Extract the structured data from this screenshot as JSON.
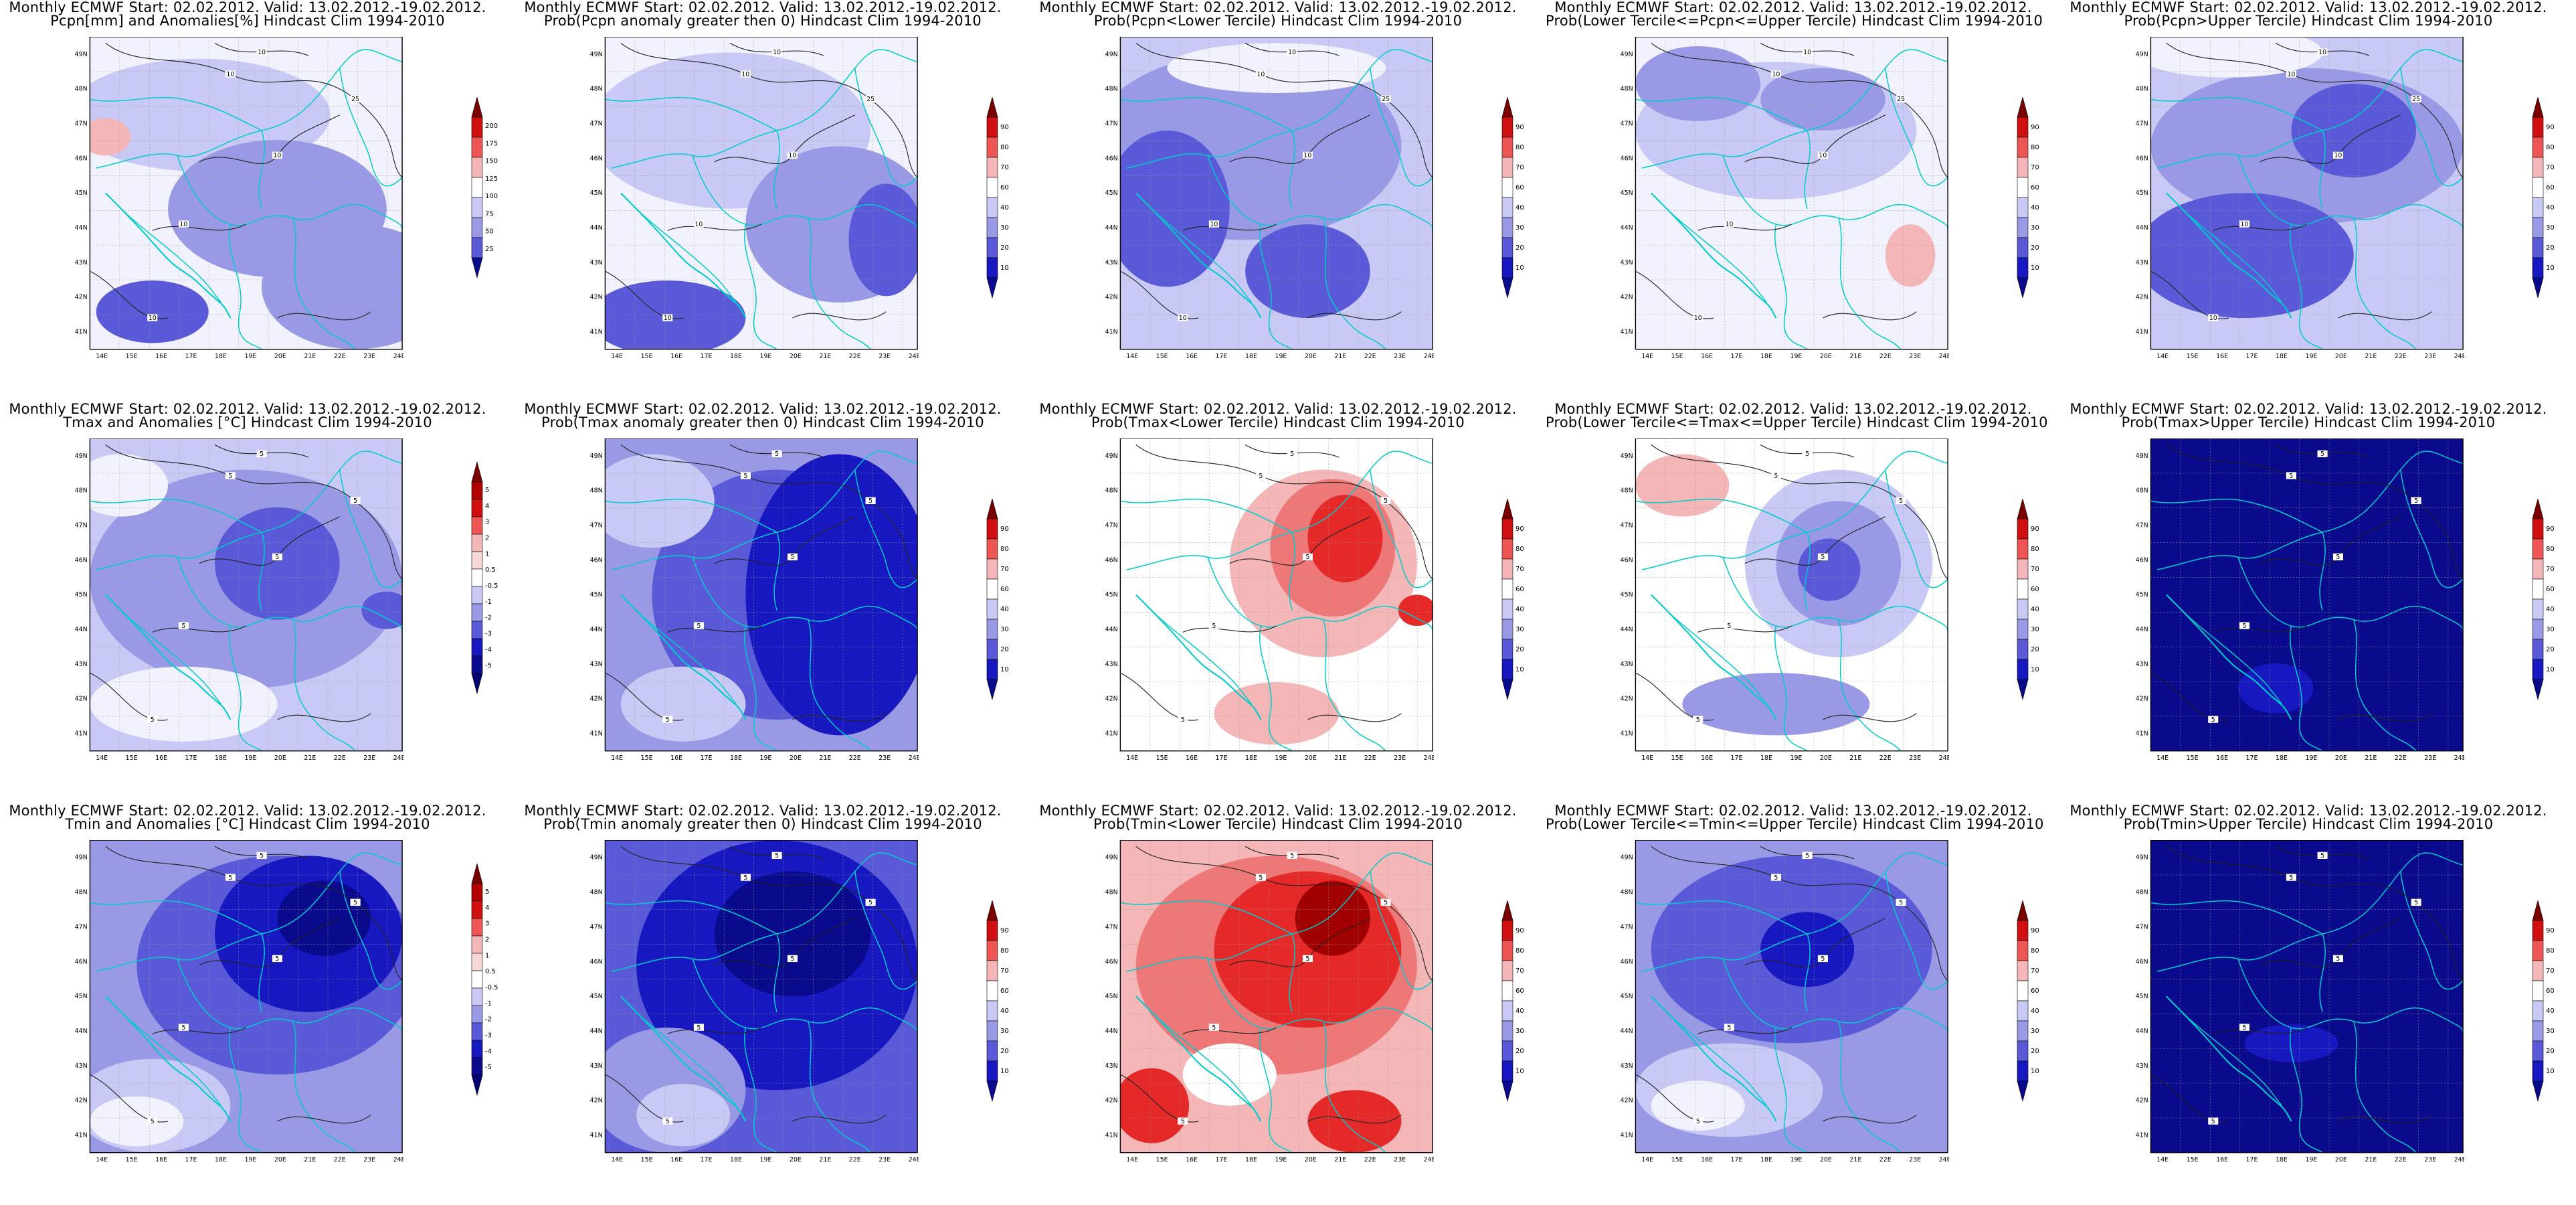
{
  "panels": [
    {
      "title1": "Monthly ECMWF Start: 02.02.2012. Valid: 13.02.2012.-19.02.2012.",
      "title2": "Pcpn[mm] and Anomalies[%] Hindcast Clim 1994-2010",
      "cbar": [
        "200",
        "175",
        "150",
        "125",
        "100",
        "75",
        "50",
        "25"
      ],
      "cbar_kind": "pcpn",
      "base": "#f2f2ff",
      "blobs": [
        [
          "#c9c9f5",
          0.35,
          0.25,
          0.42,
          0.18
        ],
        [
          "#9999e6",
          0.6,
          0.55,
          0.35,
          0.22
        ],
        [
          "#9999e6",
          0.85,
          0.8,
          0.3,
          0.2
        ],
        [
          "#5a5ad8",
          0.2,
          0.88,
          0.18,
          0.1
        ],
        [
          "#f4b6b6",
          0.05,
          0.32,
          0.08,
          0.06
        ]
      ],
      "contours": [
        "10",
        "10",
        "10",
        "10",
        "25",
        "10"
      ]
    },
    {
      "title1": "Monthly ECMWF Start: 02.02.2012. Valid: 13.02.2012.-19.02.2012.",
      "title2": "Prob(Pcpn anomaly greater then 0) Hindcast Clim 1994-2010",
      "cbar": [
        "90",
        "80",
        "70",
        "60",
        "40",
        "30",
        "20",
        "10"
      ],
      "cbar_kind": "prob",
      "base": "#f2f2ff",
      "blobs": [
        [
          "#c9c9f5",
          0.4,
          0.3,
          0.45,
          0.25
        ],
        [
          "#9999e6",
          0.75,
          0.6,
          0.3,
          0.25
        ],
        [
          "#5a5ad8",
          0.2,
          0.9,
          0.25,
          0.12
        ],
        [
          "#5a5ad8",
          0.9,
          0.65,
          0.12,
          0.18
        ]
      ],
      "contours": [
        "10",
        "10",
        "10",
        "10",
        "25",
        "10"
      ]
    },
    {
      "title1": "Monthly ECMWF Start: 02.02.2012. Valid: 13.02.2012.-19.02.2012.",
      "title2": "Prob(Pcpn<Lower Tercile) Hindcast Clim 1994-2010",
      "cbar": [
        "90",
        "80",
        "70",
        "60",
        "40",
        "30",
        "20",
        "10"
      ],
      "cbar_kind": "prob",
      "base": "#c9c9f5",
      "blobs": [
        [
          "#9999e6",
          0.4,
          0.35,
          0.5,
          0.3
        ],
        [
          "#5a5ad8",
          0.15,
          0.55,
          0.2,
          0.25
        ],
        [
          "#5a5ad8",
          0.6,
          0.75,
          0.2,
          0.15
        ],
        [
          "#f2f2ff",
          0.5,
          0.1,
          0.35,
          0.08
        ]
      ],
      "contours": [
        "10",
        "10",
        "10",
        "10",
        "25",
        "10"
      ]
    },
    {
      "title1": "Monthly ECMWF Start: 02.02.2012. Valid: 13.02.2012.-19.02.2012.",
      "title2": "Prob(Lower Tercile<=Pcpn<=Upper Tercile) Hindcast Clim 1994-2010",
      "cbar": [
        "90",
        "80",
        "70",
        "60",
        "40",
        "30",
        "20",
        "10"
      ],
      "cbar_kind": "prob",
      "base": "#f2f2ff",
      "blobs": [
        [
          "#c9c9f5",
          0.45,
          0.3,
          0.45,
          0.22
        ],
        [
          "#9999e6",
          0.2,
          0.15,
          0.2,
          0.12
        ],
        [
          "#9999e6",
          0.6,
          0.2,
          0.2,
          0.1
        ],
        [
          "#f4b6b6",
          0.88,
          0.7,
          0.08,
          0.1
        ]
      ],
      "contours": [
        "10",
        "10",
        "10",
        "10",
        "25",
        "10"
      ]
    },
    {
      "title1": "Monthly ECMWF Start: 02.02.2012. Valid: 13.02.2012.-19.02.2012.",
      "title2": "Prob(Pcpn>Upper Tercile) Hindcast Clim 1994-2010",
      "cbar": [
        "90",
        "80",
        "70",
        "60",
        "40",
        "30",
        "20",
        "10"
      ],
      "cbar_kind": "prob",
      "base": "#c9c9f5",
      "blobs": [
        [
          "#9999e6",
          0.5,
          0.35,
          0.5,
          0.25
        ],
        [
          "#5a5ad8",
          0.3,
          0.7,
          0.35,
          0.2
        ],
        [
          "#5a5ad8",
          0.65,
          0.3,
          0.2,
          0.15
        ],
        [
          "#f2f2ff",
          0.25,
          0.05,
          0.3,
          0.08
        ]
      ],
      "contours": [
        "10",
        "10",
        "10",
        "10",
        "25",
        "10"
      ]
    },
    {
      "title1": "Monthly ECMWF Start: 02.02.2012. Valid: 13.02.2012.-19.02.2012.",
      "title2": "Tmax and Anomalies [°C] Hindcast Clim 1994-2010",
      "cbar": [
        "5",
        "4",
        "3",
        "2",
        "1",
        "0.5",
        "-0.5",
        "-1",
        "-2",
        "-3",
        "-4",
        "-5"
      ],
      "cbar_kind": "temp",
      "base": "#c9c9f5",
      "blobs": [
        [
          "#9999e6",
          0.5,
          0.45,
          0.5,
          0.35
        ],
        [
          "#5a5ad8",
          0.6,
          0.4,
          0.2,
          0.18
        ],
        [
          "#f2f2ff",
          0.1,
          0.15,
          0.15,
          0.1
        ],
        [
          "#f2f2ff",
          0.3,
          0.85,
          0.3,
          0.12
        ],
        [
          "#5a5ad8",
          0.95,
          0.55,
          0.08,
          0.06
        ]
      ],
      "contours": [
        "5",
        "5",
        "5",
        "5",
        "5",
        "5"
      ]
    },
    {
      "title1": "Monthly ECMWF Start: 02.02.2012. Valid: 13.02.2012.-19.02.2012.",
      "title2": "Prob(Tmax anomaly greater then 0) Hindcast Clim 1994-2010",
      "cbar": [
        "90",
        "80",
        "70",
        "60",
        "40",
        "30",
        "20",
        "10"
      ],
      "cbar_kind": "prob",
      "base": "#9999e6",
      "blobs": [
        [
          "#5a5ad8",
          0.55,
          0.5,
          0.4,
          0.4
        ],
        [
          "#1818c0",
          0.75,
          0.5,
          0.3,
          0.45
        ],
        [
          "#c9c9f5",
          0.15,
          0.2,
          0.2,
          0.15
        ],
        [
          "#c9c9f5",
          0.25,
          0.85,
          0.2,
          0.12
        ]
      ],
      "contours": [
        "5",
        "5",
        "5",
        "5",
        "5",
        "5"
      ]
    },
    {
      "title1": "Monthly ECMWF Start: 02.02.2012. Valid: 13.02.2012.-19.02.2012.",
      "title2": "Prob(Tmax<Lower Tercile) Hindcast Clim 1994-2010",
      "cbar": [
        "90",
        "80",
        "70",
        "60",
        "40",
        "30",
        "20",
        "10"
      ],
      "cbar_kind": "prob",
      "base": "#ffffff",
      "blobs": [
        [
          "#f4b6b6",
          0.65,
          0.4,
          0.3,
          0.3
        ],
        [
          "#ee7777",
          0.68,
          0.35,
          0.2,
          0.22
        ],
        [
          "#e52828",
          0.72,
          0.32,
          0.12,
          0.14
        ],
        [
          "#f4b6b6",
          0.5,
          0.88,
          0.2,
          0.1
        ],
        [
          "#e52828",
          0.95,
          0.55,
          0.06,
          0.05
        ]
      ],
      "contours": [
        "5",
        "5",
        "5",
        "5",
        "5",
        "5"
      ]
    },
    {
      "title1": "Monthly ECMWF Start: 02.02.2012. Valid: 13.02.2012.-19.02.2012.",
      "title2": "Prob(Lower Tercile<=Tmax<=Upper Tercile) Hindcast Clim 1994-2010",
      "cbar": [
        "90",
        "80",
        "70",
        "60",
        "40",
        "30",
        "20",
        "10"
      ],
      "cbar_kind": "prob",
      "base": "#ffffff",
      "blobs": [
        [
          "#c9c9f5",
          0.65,
          0.4,
          0.3,
          0.3
        ],
        [
          "#9999e6",
          0.65,
          0.4,
          0.2,
          0.2
        ],
        [
          "#5a5ad8",
          0.62,
          0.42,
          0.1,
          0.1
        ],
        [
          "#f4b6b6",
          0.15,
          0.15,
          0.15,
          0.1
        ],
        [
          "#9999e6",
          0.45,
          0.85,
          0.3,
          0.1
        ]
      ],
      "contours": [
        "5",
        "5",
        "5",
        "5",
        "5",
        "5"
      ]
    },
    {
      "title1": "Monthly ECMWF Start: 02.02.2012. Valid: 13.02.2012.-19.02.2012.",
      "title2": "Prob(Tmax>Upper Tercile) Hindcast Clim 1994-2010",
      "cbar": [
        "90",
        "80",
        "70",
        "60",
        "40",
        "30",
        "20",
        "10"
      ],
      "cbar_kind": "prob",
      "base": "#0a0a8c",
      "blobs": [
        [
          "#1818c0",
          0.4,
          0.8,
          0.12,
          0.08
        ]
      ],
      "contours": [
        "5",
        "5",
        "5",
        "5",
        "5",
        "5"
      ]
    },
    {
      "title1": "Monthly ECMWF Start: 02.02.2012. Valid: 13.02.2012.-19.02.2012.",
      "title2": "Tmin and Anomalies [°C] Hindcast Clim 1994-2010",
      "cbar": [
        "5",
        "4",
        "3",
        "2",
        "1",
        "0.5",
        "-0.5",
        "-1",
        "-2",
        "-3",
        "-4",
        "-5"
      ],
      "cbar_kind": "temp",
      "base": "#9999e6",
      "blobs": [
        [
          "#5a5ad8",
          0.6,
          0.4,
          0.45,
          0.35
        ],
        [
          "#1818c0",
          0.7,
          0.3,
          0.3,
          0.25
        ],
        [
          "#0a0a8c",
          0.75,
          0.25,
          0.15,
          0.12
        ],
        [
          "#c9c9f5",
          0.2,
          0.85,
          0.25,
          0.15
        ],
        [
          "#f2f2ff",
          0.15,
          0.9,
          0.15,
          0.08
        ]
      ],
      "contours": [
        "5",
        "5",
        "5",
        "5",
        "5",
        "5"
      ]
    },
    {
      "title1": "Monthly ECMWF Start: 02.02.2012. Valid: 13.02.2012.-19.02.2012.",
      "title2": "Prob(Tmin anomaly greater then 0) Hindcast Clim 1994-2010",
      "cbar": [
        "90",
        "80",
        "70",
        "60",
        "40",
        "30",
        "20",
        "10"
      ],
      "cbar_kind": "prob",
      "base": "#5a5ad8",
      "blobs": [
        [
          "#1818c0",
          0.55,
          0.4,
          0.45,
          0.4
        ],
        [
          "#0a0a8c",
          0.6,
          0.3,
          0.25,
          0.2
        ],
        [
          "#9999e6",
          0.2,
          0.8,
          0.25,
          0.2
        ],
        [
          "#c9c9f5",
          0.25,
          0.88,
          0.15,
          0.1
        ]
      ],
      "contours": [
        "5",
        "5",
        "5",
        "5",
        "5",
        "5"
      ]
    },
    {
      "title1": "Monthly ECMWF Start: 02.02.2012. Valid: 13.02.2012.-19.02.2012.",
      "title2": "Prob(Tmin<Lower Tercile) Hindcast Clim 1994-2010",
      "cbar": [
        "90",
        "80",
        "70",
        "60",
        "40",
        "30",
        "20",
        "10"
      ],
      "cbar_kind": "prob",
      "base": "#f4b6b6",
      "blobs": [
        [
          "#ee7777",
          0.5,
          0.4,
          0.45,
          0.35
        ],
        [
          "#e52828",
          0.6,
          0.35,
          0.3,
          0.25
        ],
        [
          "#a00000",
          0.68,
          0.25,
          0.12,
          0.12
        ],
        [
          "#e52828",
          0.1,
          0.85,
          0.12,
          0.12
        ],
        [
          "#e52828",
          0.75,
          0.9,
          0.15,
          0.1
        ],
        [
          "#ffffff",
          0.35,
          0.75,
          0.15,
          0.1
        ]
      ],
      "contours": [
        "5",
        "5",
        "5",
        "5",
        "5",
        "5"
      ]
    },
    {
      "title1": "Monthly ECMWF Start: 02.02.2012. Valid: 13.02.2012.-19.02.2012.",
      "title2": "Prob(Lower Tercile<=Tmin<=Upper Tercile) Hindcast Clim 1994-2010",
      "cbar": [
        "90",
        "80",
        "70",
        "60",
        "40",
        "30",
        "20",
        "10"
      ],
      "cbar_kind": "prob",
      "base": "#9999e6",
      "blobs": [
        [
          "#5a5ad8",
          0.5,
          0.35,
          0.45,
          0.3
        ],
        [
          "#1818c0",
          0.55,
          0.35,
          0.15,
          0.12
        ],
        [
          "#c9c9f5",
          0.3,
          0.8,
          0.3,
          0.15
        ],
        [
          "#f2f2ff",
          0.2,
          0.85,
          0.15,
          0.08
        ]
      ],
      "contours": [
        "5",
        "5",
        "5",
        "5",
        "5",
        "5"
      ]
    },
    {
      "title1": "Monthly ECMWF Start: 02.02.2012. Valid: 13.02.2012.-19.02.2012.",
      "title2": "Prob(Tmin>Upper Tercile) Hindcast Clim 1994-2010",
      "cbar": [
        "90",
        "80",
        "70",
        "60",
        "40",
        "30",
        "20",
        "10"
      ],
      "cbar_kind": "prob",
      "base": "#0a0a8c",
      "blobs": [
        [
          "#1818c0",
          0.45,
          0.65,
          0.15,
          0.06
        ]
      ],
      "contours": [
        "5",
        "5",
        "5",
        "5",
        "5",
        "5"
      ]
    }
  ],
  "lat_ticks": [
    "49N",
    "48N",
    "47N",
    "46N",
    "45N",
    "44N",
    "43N",
    "42N",
    "41N"
  ],
  "lon_ticks": [
    "14E",
    "15E",
    "16E",
    "17E",
    "18E",
    "19E",
    "20E",
    "21E",
    "22E",
    "23E",
    "24E"
  ],
  "colors": {
    "prob": [
      "#7a0000",
      "#d01010",
      "#ee5555",
      "#f4b6b6",
      "#ffffff",
      "#c9c9f5",
      "#9999e6",
      "#5a5ad8",
      "#1818c0",
      "#0a0a8c"
    ],
    "temp": [
      "#7a0000",
      "#b00000",
      "#d01010",
      "#ee5555",
      "#f4b6b6",
      "#f7d6d6",
      "#ffffff",
      "#c9c9f5",
      "#9999e6",
      "#5a5ad8",
      "#1818c0",
      "#0a0a8c",
      "#000070"
    ],
    "pcpn": [
      "#7a0000",
      "#d01010",
      "#ee5555",
      "#f4b6b6",
      "#ffffff",
      "#c9c9f5",
      "#9999e6",
      "#5a5ad8",
      "#0a0a8c"
    ],
    "border": "#00cccc"
  }
}
